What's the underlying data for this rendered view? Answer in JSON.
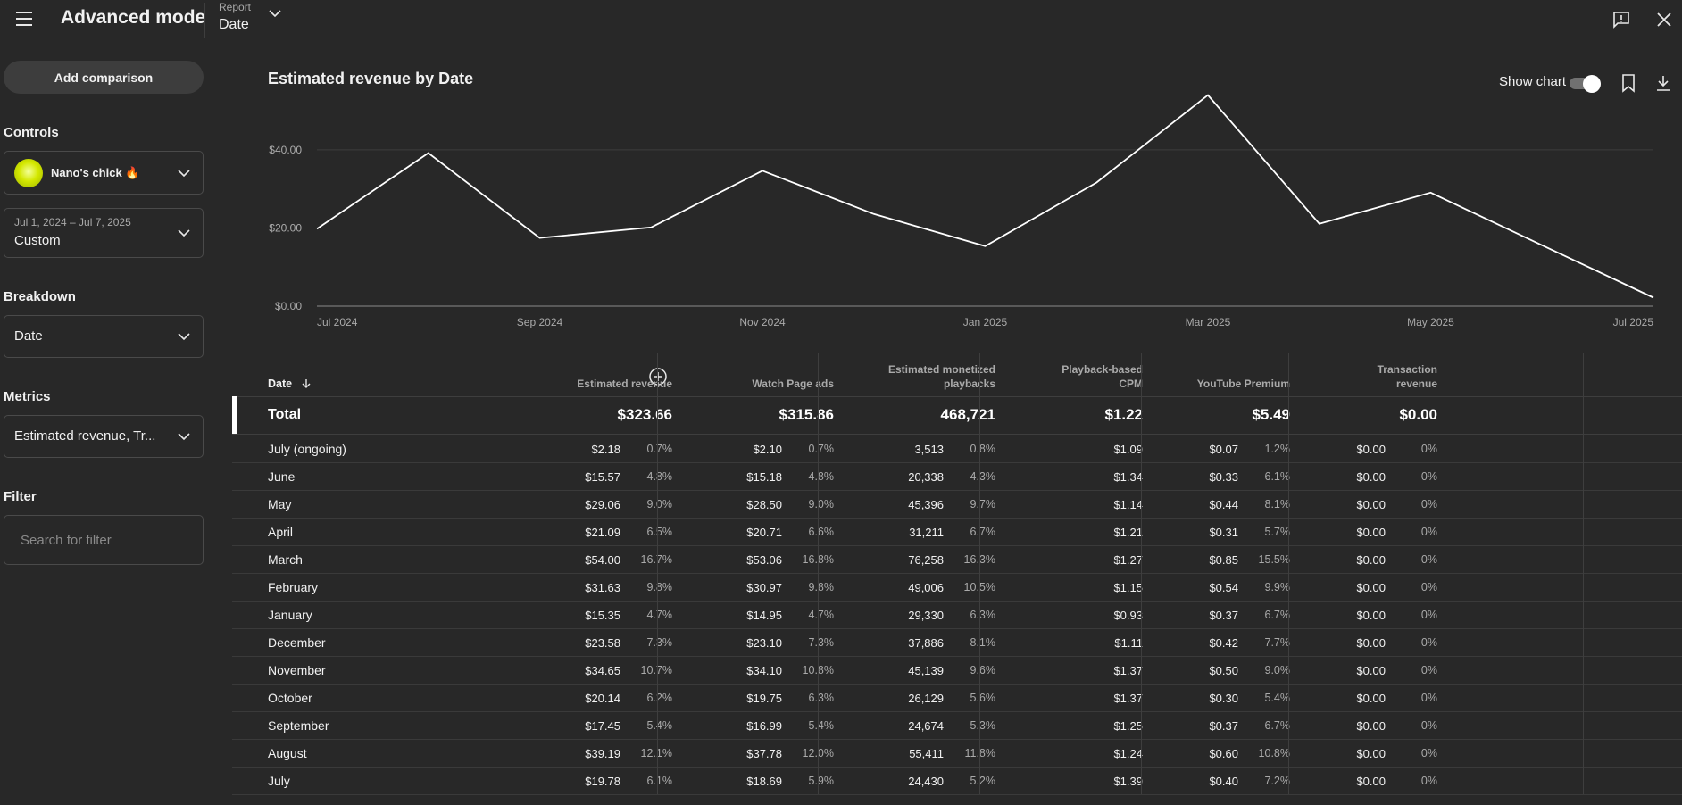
{
  "header": {
    "title": "Advanced mode",
    "report_label": "Report",
    "report_value": "Date"
  },
  "sidebar": {
    "add_comparison": "Add comparison",
    "controls_label": "Controls",
    "channel_name": "Nano's chick 🔥",
    "date_range": "Jul 1, 2024 – Jul 7, 2025",
    "date_preset": "Custom",
    "breakdown_label": "Breakdown",
    "breakdown_value": "Date",
    "metrics_label": "Metrics",
    "metrics_value": "Estimated revenue, Tr...",
    "filter_label": "Filter",
    "filter_placeholder": "Search for filter"
  },
  "chart": {
    "title": "Estimated revenue by Date",
    "show_chart_label": "Show chart",
    "show_chart_on": true
  },
  "chart_data": {
    "type": "line",
    "x": [
      "Jul 2024",
      "Aug 2024",
      "Sep 2024",
      "Oct 2024",
      "Nov 2024",
      "Dec 2024",
      "Jan 2025",
      "Feb 2025",
      "Mar 2025",
      "Apr 2025",
      "May 2025",
      "Jun 2025",
      "Jul 2025"
    ],
    "values": [
      19.78,
      39.19,
      17.45,
      20.14,
      34.65,
      23.58,
      15.35,
      31.63,
      54.0,
      21.09,
      29.06,
      15.57,
      2.18
    ],
    "x_tick_labels": [
      "Jul 2024",
      "Sep 2024",
      "Nov 2024",
      "Jan 2025",
      "Mar 2025",
      "May 2025",
      "Jul 2025"
    ],
    "y_tick_labels": [
      "$0.00",
      "$20.00",
      "$40.00"
    ],
    "y_ticks": [
      0,
      20,
      40
    ],
    "ylim": [
      0,
      53
    ],
    "grid": true,
    "line_color": "#ffffff"
  },
  "table": {
    "headers": {
      "date": "Date",
      "est_revenue": "Estimated revenue",
      "watch_page_ads": "Watch Page ads",
      "est_monetized_1": "Estimated monetized",
      "est_monetized_2": "playbacks",
      "cpm_1": "Playback-based",
      "cpm_2": "CPM",
      "yt_premium": "YouTube Premium",
      "transaction_1": "Transaction",
      "transaction_2": "revenue"
    },
    "total": {
      "label": "Total",
      "est_revenue": "$323.66",
      "watch_page_ads": "$315.86",
      "monetized": "468,721",
      "cpm": "$1.22",
      "premium": "$5.49",
      "transaction": "$0.00"
    },
    "rows": [
      {
        "label": "July (ongoing)",
        "rev": "$2.18",
        "rev_pct": "0.7%",
        "ads": "$2.10",
        "ads_pct": "0.7%",
        "mon": "3,513",
        "mon_pct": "0.8%",
        "cpm": "$1.09",
        "prem": "$0.07",
        "prem_pct": "1.2%",
        "tx": "$0.00",
        "tx_pct": "0%"
      },
      {
        "label": "June",
        "rev": "$15.57",
        "rev_pct": "4.8%",
        "ads": "$15.18",
        "ads_pct": "4.8%",
        "mon": "20,338",
        "mon_pct": "4.3%",
        "cpm": "$1.34",
        "prem": "$0.33",
        "prem_pct": "6.1%",
        "tx": "$0.00",
        "tx_pct": "0%"
      },
      {
        "label": "May",
        "rev": "$29.06",
        "rev_pct": "9.0%",
        "ads": "$28.50",
        "ads_pct": "9.0%",
        "mon": "45,396",
        "mon_pct": "9.7%",
        "cpm": "$1.14",
        "prem": "$0.44",
        "prem_pct": "8.1%",
        "tx": "$0.00",
        "tx_pct": "0%"
      },
      {
        "label": "April",
        "rev": "$21.09",
        "rev_pct": "6.5%",
        "ads": "$20.71",
        "ads_pct": "6.6%",
        "mon": "31,211",
        "mon_pct": "6.7%",
        "cpm": "$1.21",
        "prem": "$0.31",
        "prem_pct": "5.7%",
        "tx": "$0.00",
        "tx_pct": "0%"
      },
      {
        "label": "March",
        "rev": "$54.00",
        "rev_pct": "16.7%",
        "ads": "$53.06",
        "ads_pct": "16.8%",
        "mon": "76,258",
        "mon_pct": "16.3%",
        "cpm": "$1.27",
        "prem": "$0.85",
        "prem_pct": "15.5%",
        "tx": "$0.00",
        "tx_pct": "0%"
      },
      {
        "label": "February",
        "rev": "$31.63",
        "rev_pct": "9.8%",
        "ads": "$30.97",
        "ads_pct": "9.8%",
        "mon": "49,006",
        "mon_pct": "10.5%",
        "cpm": "$1.15",
        "prem": "$0.54",
        "prem_pct": "9.9%",
        "tx": "$0.00",
        "tx_pct": "0%"
      },
      {
        "label": "January",
        "rev": "$15.35",
        "rev_pct": "4.7%",
        "ads": "$14.95",
        "ads_pct": "4.7%",
        "mon": "29,330",
        "mon_pct": "6.3%",
        "cpm": "$0.93",
        "prem": "$0.37",
        "prem_pct": "6.7%",
        "tx": "$0.00",
        "tx_pct": "0%"
      },
      {
        "label": "December",
        "rev": "$23.58",
        "rev_pct": "7.3%",
        "ads": "$23.10",
        "ads_pct": "7.3%",
        "mon": "37,886",
        "mon_pct": "8.1%",
        "cpm": "$1.11",
        "prem": "$0.42",
        "prem_pct": "7.7%",
        "tx": "$0.00",
        "tx_pct": "0%"
      },
      {
        "label": "November",
        "rev": "$34.65",
        "rev_pct": "10.7%",
        "ads": "$34.10",
        "ads_pct": "10.8%",
        "mon": "45,139",
        "mon_pct": "9.6%",
        "cpm": "$1.37",
        "prem": "$0.50",
        "prem_pct": "9.0%",
        "tx": "$0.00",
        "tx_pct": "0%"
      },
      {
        "label": "October",
        "rev": "$20.14",
        "rev_pct": "6.2%",
        "ads": "$19.75",
        "ads_pct": "6.3%",
        "mon": "26,129",
        "mon_pct": "5.6%",
        "cpm": "$1.37",
        "prem": "$0.30",
        "prem_pct": "5.4%",
        "tx": "$0.00",
        "tx_pct": "0%"
      },
      {
        "label": "September",
        "rev": "$17.45",
        "rev_pct": "5.4%",
        "ads": "$16.99",
        "ads_pct": "5.4%",
        "mon": "24,674",
        "mon_pct": "5.3%",
        "cpm": "$1.25",
        "prem": "$0.37",
        "prem_pct": "6.7%",
        "tx": "$0.00",
        "tx_pct": "0%"
      },
      {
        "label": "August",
        "rev": "$39.19",
        "rev_pct": "12.1%",
        "ads": "$37.78",
        "ads_pct": "12.0%",
        "mon": "55,411",
        "mon_pct": "11.8%",
        "cpm": "$1.24",
        "prem": "$0.60",
        "prem_pct": "10.8%",
        "tx": "$0.00",
        "tx_pct": "0%"
      },
      {
        "label": "July",
        "rev": "$19.78",
        "rev_pct": "6.1%",
        "ads": "$18.69",
        "ads_pct": "5.9%",
        "mon": "24,430",
        "mon_pct": "5.2%",
        "cpm": "$1.39",
        "prem": "$0.40",
        "prem_pct": "7.2%",
        "tx": "$0.00",
        "tx_pct": "0%"
      }
    ]
  }
}
